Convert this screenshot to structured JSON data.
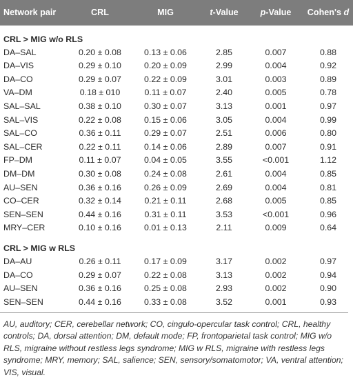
{
  "columns": {
    "pair": "Network pair",
    "crl": "CRL",
    "mig": "MIG",
    "t_main": "t",
    "t_suffix": "-Value",
    "p_main": "p",
    "p_suffix": "-Value",
    "d_prefix": "Cohen's ",
    "d_main": "d"
  },
  "sections": [
    {
      "title": "CRL > MIG w/o RLS",
      "rows": [
        {
          "pair": "DA–SAL",
          "crl": "0.20 ± 0.08",
          "mig": "0.13 ± 0.06",
          "t": "2.85",
          "p": "0.007",
          "d": "0.88"
        },
        {
          "pair": "DA–VIS",
          "crl": "0.29 ± 0.10",
          "mig": "0.20 ± 0.09",
          "t": "2.99",
          "p": "0.004",
          "d": "0.92"
        },
        {
          "pair": "DA–CO",
          "crl": "0.29 ± 0.07",
          "mig": "0.22 ± 0.09",
          "t": "3.01",
          "p": "0.003",
          "d": "0.89"
        },
        {
          "pair": "VA–DM",
          "crl": "0.18 ± 010",
          "mig": "0.11 ± 0.07",
          "t": "2.40",
          "p": "0.005",
          "d": "0.78"
        },
        {
          "pair": "SAL–SAL",
          "crl": "0.38 ± 0.10",
          "mig": "0.30 ± 0.07",
          "t": "3.13",
          "p": "0.001",
          "d": "0.97"
        },
        {
          "pair": "SAL–VIS",
          "crl": "0.22 ± 0.08",
          "mig": "0.15 ± 0.06",
          "t": "3.05",
          "p": "0.004",
          "d": "0.99"
        },
        {
          "pair": "SAL–CO",
          "crl": "0.36 ± 0.11",
          "mig": "0.29 ± 0.07",
          "t": "2.51",
          "p": "0.006",
          "d": "0.80"
        },
        {
          "pair": "SAL–CER",
          "crl": "0.22 ± 0.11",
          "mig": "0.14 ± 0.06",
          "t": "2.89",
          "p": "0.007",
          "d": "0.91"
        },
        {
          "pair": "FP–DM",
          "crl": "0.11 ± 0.07",
          "mig": "0.04 ± 0.05",
          "t": "3.55",
          "p": "<0.001",
          "d": "1.12"
        },
        {
          "pair": "DM–DM",
          "crl": "0.30 ± 0.08",
          "mig": "0.24 ± 0.08",
          "t": "2.61",
          "p": "0.004",
          "d": "0.85"
        },
        {
          "pair": "AU–SEN",
          "crl": "0.36 ± 0.16",
          "mig": "0.26 ± 0.09",
          "t": "2.69",
          "p": "0.004",
          "d": "0.81"
        },
        {
          "pair": "CO–CER",
          "crl": "0.32 ± 0.14",
          "mig": "0.21 ± 0.11",
          "t": "2.68",
          "p": "0.005",
          "d": "0.85"
        },
        {
          "pair": "SEN–SEN",
          "crl": "0.44 ± 0.16",
          "mig": "0.31 ± 0.11",
          "t": "3.53",
          "p": "<0.001",
          "d": "0.96"
        },
        {
          "pair": "MRY–CER",
          "crl": "0.10 ± 0.16",
          "mig": "0.01 ± 0.13",
          "t": "2.11",
          "p": "0.009",
          "d": "0.64"
        }
      ]
    },
    {
      "title": "CRL > MIG w RLS",
      "rows": [
        {
          "pair": "DA–AU",
          "crl": "0.26 ± 0.11",
          "mig": "0.17 ± 0.09",
          "t": "3.17",
          "p": "0.002",
          "d": "0.97"
        },
        {
          "pair": "DA–CO",
          "crl": "0.29 ± 0.07",
          "mig": "0.22 ± 0.08",
          "t": "3.13",
          "p": "0.002",
          "d": "0.94"
        },
        {
          "pair": "AU–SEN",
          "crl": "0.36 ± 0.16",
          "mig": "0.25 ± 0.08",
          "t": "2.93",
          "p": "0.002",
          "d": "0.90"
        },
        {
          "pair": "SEN–SEN",
          "crl": "0.44 ± 0.16",
          "mig": "0.33 ± 0.08",
          "t": "3.52",
          "p": "0.001",
          "d": "0.93"
        }
      ]
    }
  ],
  "footnote": "AU, auditory; CER, cerebellar network; CO, cingulo-opercular task control; CRL, healthy controls; DA, dorsal attention; DM, default mode; FP, frontoparietal task control; MIG w/o RLS, migraine without restless legs syndrome; MIG w RLS, migraine with restless legs syndrome; MRY, memory; SAL, salience; SEN, sensory/somatomotor; VA, ventral attention; VIS, visual."
}
